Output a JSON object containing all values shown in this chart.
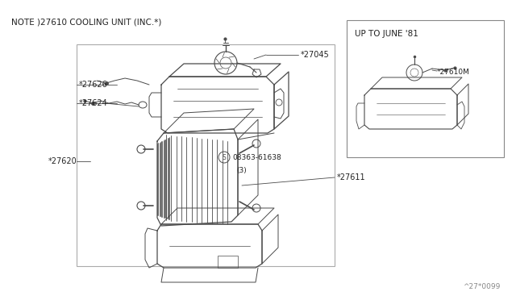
{
  "bg_color": "#ffffff",
  "line_color": "#4a4a4a",
  "label_color": "#222222",
  "border_color": "#777777",
  "title_note": "NOTE )27610 COOLING UNIT (INC.*)",
  "diagram_id": "^27*0099",
  "inset_title": "UP TO JUNE '81",
  "font_size_note": 7.5,
  "font_size_label": 7,
  "font_size_inset_title": 7.5,
  "font_size_id": 6.5
}
